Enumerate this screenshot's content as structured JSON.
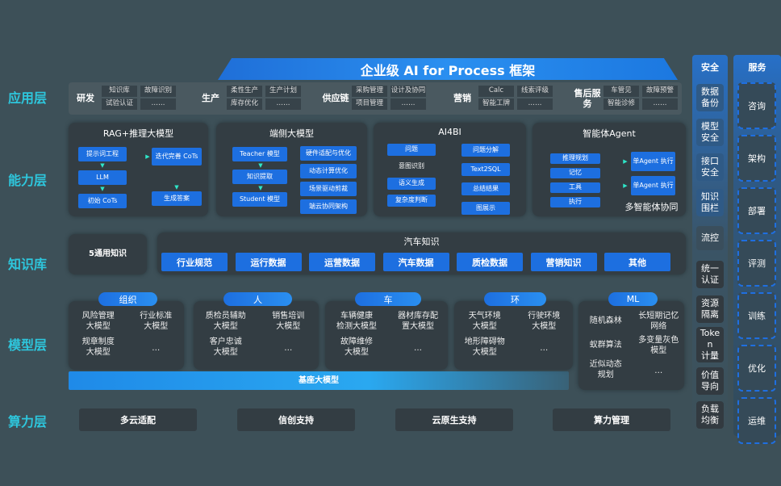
{
  "title": "企业级 AI for Process 框架",
  "layers": [
    "应用层",
    "能力层",
    "知识库",
    "模型层",
    "算力层"
  ],
  "app_groups": [
    {
      "name": "研发",
      "items": [
        [
          "知识库",
          "试验认证"
        ],
        [
          "故障识别",
          "……"
        ]
      ]
    },
    {
      "name": "生产",
      "items": [
        [
          "柔性生产",
          "库存优化"
        ],
        [
          "生产计划",
          "……"
        ]
      ]
    },
    {
      "name": "供应链",
      "items": [
        [
          "采购管理",
          "项目管理"
        ],
        [
          "设计及协同",
          "……"
        ]
      ]
    },
    {
      "name": "营销",
      "items": [
        [
          "Calc",
          "智能工牌"
        ],
        [
          "线索评级",
          "……"
        ]
      ]
    },
    {
      "name": "售后服务",
      "items": [
        [
          "车管见",
          "智能诊修"
        ],
        [
          "故障预警",
          "……"
        ]
      ]
    }
  ],
  "capabilities": {
    "rag": {
      "title": "RAG+推理大模型",
      "left": [
        "提示词工程",
        "LLM",
        "初始 CoTs"
      ],
      "right": [
        "迭代完善 CoTs",
        "生成答案"
      ]
    },
    "edge": {
      "title": "端侧大模型",
      "left": [
        "Teacher 模型",
        "知识提取",
        "Student 模型"
      ],
      "right": [
        "硬件适配与优化",
        "动态计算优化",
        "场景驱动剪裁",
        "端云协同架构"
      ]
    },
    "ai4bi": {
      "title": "AI4BI",
      "left": [
        "问题",
        "意图识别",
        "语义生成",
        "复杂度判断"
      ],
      "right": [
        "问题分解",
        "Text2SQL",
        "总结结果",
        "图展示"
      ]
    },
    "agent": {
      "title": "智能体Agent",
      "left": [
        "推理规划",
        "记忆",
        "工具",
        "执行"
      ],
      "right": [
        "单Agent 执行",
        "单Agent 执行"
      ],
      "footer": "多智能体协同"
    }
  },
  "knowledge": {
    "general": "5通用知识",
    "auto_title": "汽车知识",
    "auto_items": [
      "行业规范",
      "运行数据",
      "运营数据",
      "汽车数据",
      "质检数据",
      "营销知识",
      "其他"
    ]
  },
  "models": [
    {
      "name": "组织",
      "items": [
        "风险管理\n大模型",
        "行业标准\n大模型",
        "规章制度\n大模型",
        "…"
      ]
    },
    {
      "name": "人",
      "items": [
        "质检员辅助\n大模型",
        "销售培训\n大模型",
        "客户忠诚\n大模型",
        "…"
      ]
    },
    {
      "name": "车",
      "items": [
        "车辆健康\n检测大模型",
        "器材库存配\n置大模型",
        "故障维修\n大模型",
        "…"
      ]
    },
    {
      "name": "环",
      "items": [
        "天气环境\n大模型",
        "行驶环境\n大模型",
        "地形障碍物\n大模型",
        "…"
      ]
    },
    {
      "name": "ML",
      "items": [
        "随机森林",
        "长短期记忆\n网络",
        "蚁群算法",
        "多变量灰色\n模型",
        "近似动态\n规划",
        "…"
      ]
    }
  ],
  "base_model": "基座大模型",
  "compute": [
    "多云适配",
    "信创支持",
    "云原生支持",
    "算力管理"
  ],
  "security": {
    "title": "安全",
    "items": [
      "数据\n备份",
      "模型\n安全",
      "接口\n安全",
      "知识\n围栏",
      "流控",
      "统一\n认证",
      "资源\n隔离",
      "Toke\nn\n计量",
      "价值\n导向",
      "负载\n均衡"
    ]
  },
  "service": {
    "title": "服务",
    "items": [
      "咨询",
      "架构",
      "部署",
      "评测",
      "训练",
      "优化",
      "运维"
    ]
  },
  "colors": {
    "accent": "#1d6fe0",
    "layer_label": "#2ec6dc",
    "background": "#3d5058"
  }
}
